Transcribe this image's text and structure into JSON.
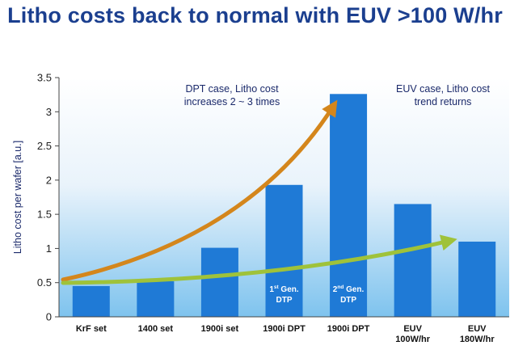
{
  "title": "Litho costs back to normal with EUV >100 W/hr",
  "chart_data": {
    "type": "bar",
    "title": "Litho costs back to normal with EUV >100 W/hr",
    "xlabel": "",
    "ylabel": "Litho cost per wafer [a.u.]",
    "ylim": [
      0,
      3.5
    ],
    "yticks": [
      0,
      0.5,
      1,
      1.5,
      2,
      2.5,
      3,
      3.5
    ],
    "ytick_labels": [
      "0",
      "0.5",
      "1",
      "1.5",
      "2",
      "2.5",
      "3",
      "3.5"
    ],
    "grid": false,
    "categories": [
      [
        "KrF set"
      ],
      [
        "1400 set"
      ],
      [
        "1900i set"
      ],
      [
        "1900i DPT"
      ],
      [
        "1900i DPT"
      ],
      [
        "EUV",
        "100W/hr"
      ],
      [
        "EUV",
        "180W/hr"
      ]
    ],
    "values": [
      0.45,
      0.52,
      1.01,
      1.93,
      3.26,
      1.65,
      1.1
    ],
    "bar_labels": [
      null,
      null,
      null,
      {
        "ordinal": "1",
        "suffix": "st",
        "line1": "Gen.",
        "line2": "DTP"
      },
      {
        "ordinal": "2",
        "suffix": "nd",
        "line1": "Gen.",
        "line2": "DTP"
      },
      null,
      null
    ],
    "annotations": [
      {
        "lines": [
          "DPT case, Litho cost",
          "increases 2 ~ 3 times"
        ],
        "color": "#d4861c"
      },
      {
        "lines": [
          "EUV case, Litho cost",
          "trend returns"
        ],
        "color": "#9fc23a"
      }
    ],
    "colors": {
      "bar": "#1f7ad6",
      "title": "#1b3f8f",
      "orange_arrow": "#d4861c",
      "green_arrow": "#9fc23a"
    }
  }
}
